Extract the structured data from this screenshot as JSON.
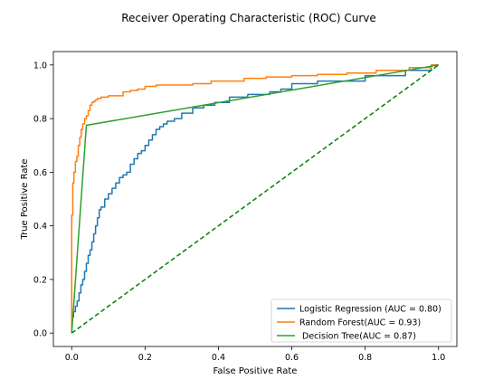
{
  "chart_data": {
    "type": "line",
    "title": "Receiver Operating Characteristic (ROC) Curve",
    "xlabel": "False Positive Rate",
    "ylabel": "True Positive Rate",
    "xlim": [
      -0.05,
      1.05
    ],
    "ylim": [
      -0.05,
      1.05
    ],
    "xticks": [
      0.0,
      0.2,
      0.4,
      0.6,
      0.8,
      1.0
    ],
    "yticks": [
      0.0,
      0.2,
      0.4,
      0.6,
      0.8,
      1.0
    ],
    "tick_labels": [
      "0.0",
      "0.2",
      "0.4",
      "0.6",
      "0.8",
      "1.0"
    ],
    "grid": false,
    "legend_position": "lower-right",
    "series": [
      {
        "name": "Logistic Regression (AUC = 0.80)",
        "color": "#1f77b4",
        "style": "solid",
        "step": true,
        "x": [
          0.0,
          0.0,
          0.005,
          0.005,
          0.01,
          0.01,
          0.015,
          0.015,
          0.02,
          0.02,
          0.025,
          0.025,
          0.03,
          0.03,
          0.035,
          0.035,
          0.04,
          0.04,
          0.045,
          0.045,
          0.05,
          0.05,
          0.055,
          0.055,
          0.06,
          0.06,
          0.065,
          0.065,
          0.07,
          0.07,
          0.075,
          0.075,
          0.08,
          0.08,
          0.09,
          0.09,
          0.1,
          0.1,
          0.11,
          0.11,
          0.12,
          0.12,
          0.13,
          0.13,
          0.14,
          0.14,
          0.15,
          0.15,
          0.16,
          0.16,
          0.17,
          0.17,
          0.18,
          0.18,
          0.19,
          0.19,
          0.2,
          0.2,
          0.21,
          0.21,
          0.22,
          0.22,
          0.23,
          0.23,
          0.24,
          0.24,
          0.25,
          0.25,
          0.26,
          0.26,
          0.28,
          0.28,
          0.3,
          0.3,
          0.33,
          0.33,
          0.36,
          0.36,
          0.39,
          0.39,
          0.43,
          0.43,
          0.48,
          0.48,
          0.54,
          0.54,
          0.57,
          0.57,
          0.6,
          0.6,
          0.67,
          0.67,
          0.8,
          0.8,
          0.91,
          0.91,
          0.98,
          0.98,
          1.0
        ],
        "y": [
          0.0,
          0.06,
          0.06,
          0.08,
          0.08,
          0.1,
          0.1,
          0.12,
          0.12,
          0.15,
          0.15,
          0.18,
          0.18,
          0.2,
          0.2,
          0.23,
          0.23,
          0.26,
          0.26,
          0.29,
          0.29,
          0.31,
          0.31,
          0.34,
          0.34,
          0.37,
          0.37,
          0.4,
          0.4,
          0.43,
          0.43,
          0.46,
          0.46,
          0.47,
          0.47,
          0.5,
          0.5,
          0.52,
          0.52,
          0.54,
          0.54,
          0.56,
          0.56,
          0.58,
          0.58,
          0.59,
          0.59,
          0.6,
          0.6,
          0.63,
          0.63,
          0.65,
          0.65,
          0.67,
          0.67,
          0.68,
          0.68,
          0.7,
          0.7,
          0.72,
          0.72,
          0.74,
          0.74,
          0.76,
          0.76,
          0.77,
          0.77,
          0.78,
          0.78,
          0.79,
          0.79,
          0.8,
          0.8,
          0.82,
          0.82,
          0.84,
          0.84,
          0.85,
          0.85,
          0.86,
          0.86,
          0.88,
          0.88,
          0.89,
          0.89,
          0.9,
          0.9,
          0.91,
          0.91,
          0.93,
          0.93,
          0.94,
          0.94,
          0.96,
          0.96,
          0.98,
          0.98,
          1.0,
          1.0
        ]
      },
      {
        "name": "Random Forest(AUC = 0.93)",
        "color": "#ff7f0e",
        "style": "solid",
        "step": true,
        "x": [
          0.0,
          0.0,
          0.003,
          0.003,
          0.006,
          0.006,
          0.01,
          0.01,
          0.014,
          0.014,
          0.018,
          0.018,
          0.022,
          0.022,
          0.026,
          0.026,
          0.03,
          0.03,
          0.035,
          0.035,
          0.04,
          0.04,
          0.045,
          0.045,
          0.05,
          0.05,
          0.055,
          0.055,
          0.06,
          0.06,
          0.065,
          0.065,
          0.07,
          0.07,
          0.08,
          0.08,
          0.1,
          0.1,
          0.14,
          0.14,
          0.16,
          0.16,
          0.18,
          0.18,
          0.2,
          0.2,
          0.23,
          0.23,
          0.33,
          0.33,
          0.38,
          0.38,
          0.47,
          0.47,
          0.53,
          0.53,
          0.6,
          0.6,
          0.67,
          0.67,
          0.75,
          0.75,
          0.83,
          0.83,
          0.92,
          0.92,
          0.98,
          0.98,
          1.0
        ],
        "y": [
          0.0,
          0.44,
          0.44,
          0.56,
          0.56,
          0.6,
          0.6,
          0.64,
          0.64,
          0.66,
          0.66,
          0.7,
          0.7,
          0.73,
          0.73,
          0.76,
          0.76,
          0.78,
          0.78,
          0.8,
          0.8,
          0.81,
          0.81,
          0.83,
          0.83,
          0.85,
          0.85,
          0.86,
          0.86,
          0.865,
          0.865,
          0.87,
          0.87,
          0.875,
          0.875,
          0.88,
          0.88,
          0.885,
          0.885,
          0.9,
          0.9,
          0.905,
          0.905,
          0.91,
          0.91,
          0.92,
          0.92,
          0.925,
          0.925,
          0.93,
          0.93,
          0.94,
          0.94,
          0.95,
          0.95,
          0.955,
          0.955,
          0.96,
          0.96,
          0.965,
          0.965,
          0.97,
          0.97,
          0.98,
          0.98,
          0.99,
          0.99,
          1.0,
          1.0
        ]
      },
      {
        "name": " Decision Tree(AUC = 0.87)",
        "color": "#2ca02c",
        "style": "solid",
        "step": false,
        "x": [
          0.0,
          0.04,
          1.0
        ],
        "y": [
          0.0,
          0.775,
          1.0
        ]
      },
      {
        "name": "",
        "color": "#008000",
        "style": "dashed",
        "step": false,
        "x": [
          0.0,
          1.0
        ],
        "y": [
          0.0,
          1.0
        ]
      }
    ]
  }
}
